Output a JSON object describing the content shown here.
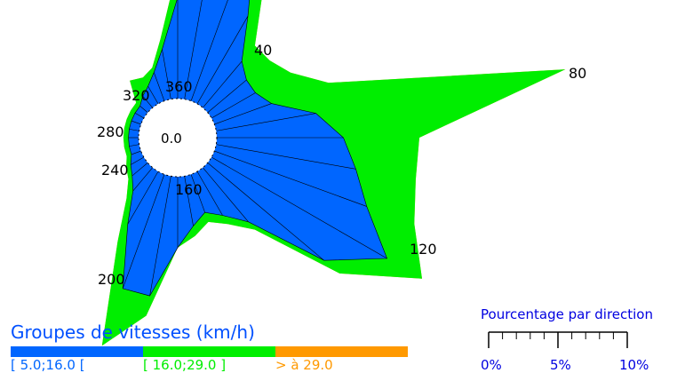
{
  "chart_data": {
    "type": "radar",
    "title": "",
    "center_label": "0.0",
    "direction_labels": [
      "40",
      "80",
      "120",
      "160",
      "200",
      "240",
      "280",
      "320",
      "360"
    ],
    "directions": [
      10,
      20,
      30,
      40,
      50,
      60,
      70,
      80,
      90,
      100,
      110,
      120,
      130,
      140,
      150,
      160,
      170,
      180,
      190,
      200,
      210,
      220,
      230,
      240,
      250,
      260,
      270,
      280,
      290,
      300,
      310,
      320,
      330,
      340,
      350,
      360
    ],
    "series": [
      {
        "name": "[ 5.0;16.0 [",
        "color": "#0066ff",
        "values": [
          5.2,
          3.8,
          2.0,
          1.2,
          1.0,
          1.0,
          1.2,
          2.0,
          2.5,
          2.8,
          3.2,
          4.0,
          3.0,
          1.4,
          1.0,
          0.8,
          1.0,
          1.4,
          2.4,
          2.4,
          1.2,
          0.6,
          0.4,
          0.3,
          0.2,
          0.2,
          0.2,
          0.2,
          0.2,
          0.2,
          0.2,
          0.3,
          0.4,
          0.6,
          1.0,
          2.0
        ]
      },
      {
        "name": "[ 16.0;29.0 ]",
        "color": "#00ee00",
        "values": [
          7.8,
          4.8,
          2.6,
          1.6,
          1.6,
          1.8,
          2.4,
          7.0,
          4.0,
          4.0,
          4.2,
          4.8,
          3.4,
          1.6,
          1.2,
          1.0,
          1.2,
          1.4,
          2.8,
          3.6,
          1.6,
          0.8,
          0.5,
          0.4,
          0.3,
          0.3,
          0.3,
          0.3,
          0.3,
          0.3,
          0.3,
          0.7,
          0.6,
          0.7,
          1.2,
          2.6
        ]
      },
      {
        "name": "> à 29.0",
        "color": "#ff9900",
        "values": [
          7.8,
          4.8,
          2.6,
          1.6,
          1.6,
          1.8,
          2.4,
          7.0,
          4.0,
          4.0,
          4.2,
          4.8,
          3.4,
          1.6,
          1.2,
          1.0,
          1.2,
          1.4,
          2.8,
          3.6,
          1.6,
          0.8,
          0.5,
          0.4,
          0.3,
          0.3,
          0.3,
          0.3,
          0.3,
          0.3,
          0.3,
          0.7,
          0.6,
          0.7,
          1.2,
          2.6
        ]
      }
    ],
    "colors": {
      "low": "#0066ff",
      "mid": "#00ee00",
      "high": "#ff9900",
      "scale": "#0000e0"
    }
  },
  "legend": {
    "title": "Groupes de vitesses (km/h)",
    "items": [
      {
        "label": "[ 5.0;16.0 [",
        "color": "#0066ff"
      },
      {
        "label": "[ 16.0;29.0 ]",
        "color": "#00ee00"
      },
      {
        "label": "> à 29.0",
        "color": "#ff9900"
      }
    ]
  },
  "scale": {
    "title": "Pourcentage par direction",
    "labels": [
      "0%",
      "5%",
      "10%"
    ],
    "max_percent": 10
  }
}
